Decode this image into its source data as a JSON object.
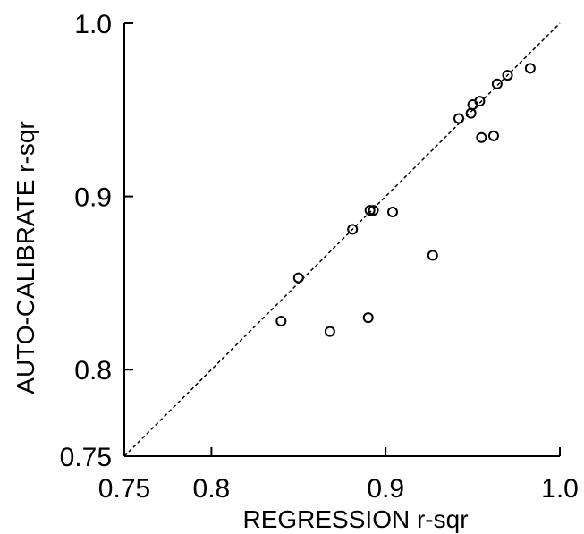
{
  "chart_data": {
    "type": "scatter",
    "title": "",
    "xlabel": "REGRESSION  r-sqr",
    "ylabel": "AUTO-CALIBRATE  r-sqr",
    "xlim": [
      0.75,
      1.0
    ],
    "ylim": [
      0.75,
      1.0
    ],
    "x_ticks": [
      0.75,
      0.8,
      0.9,
      1.0
    ],
    "x_tick_labels": [
      "0.75",
      "0.8",
      "0.9",
      "1.0"
    ],
    "y_ticks": [
      0.75,
      0.8,
      0.9,
      1.0
    ],
    "y_tick_labels": [
      "0.75",
      "0.8",
      "0.9",
      "1.0"
    ],
    "grid": false,
    "legend": "none",
    "reference_line": {
      "style": "dashed",
      "from": [
        0.75,
        0.75
      ],
      "to": [
        1.0,
        1.0
      ]
    },
    "points": [
      {
        "x": 0.84,
        "y": 0.828
      },
      {
        "x": 0.85,
        "y": 0.853
      },
      {
        "x": 0.868,
        "y": 0.822
      },
      {
        "x": 0.881,
        "y": 0.881
      },
      {
        "x": 0.89,
        "y": 0.83
      },
      {
        "x": 0.891,
        "y": 0.892
      },
      {
        "x": 0.893,
        "y": 0.892
      },
      {
        "x": 0.904,
        "y": 0.891
      },
      {
        "x": 0.927,
        "y": 0.866
      },
      {
        "x": 0.942,
        "y": 0.945
      },
      {
        "x": 0.949,
        "y": 0.948
      },
      {
        "x": 0.95,
        "y": 0.953
      },
      {
        "x": 0.954,
        "y": 0.955
      },
      {
        "x": 0.955,
        "y": 0.934
      },
      {
        "x": 0.962,
        "y": 0.935
      },
      {
        "x": 0.964,
        "y": 0.965
      },
      {
        "x": 0.97,
        "y": 0.97
      },
      {
        "x": 0.983,
        "y": 0.974
      }
    ],
    "colors": {
      "marker": "#000000",
      "axis": "#000000",
      "reference_line": "#000000"
    }
  }
}
